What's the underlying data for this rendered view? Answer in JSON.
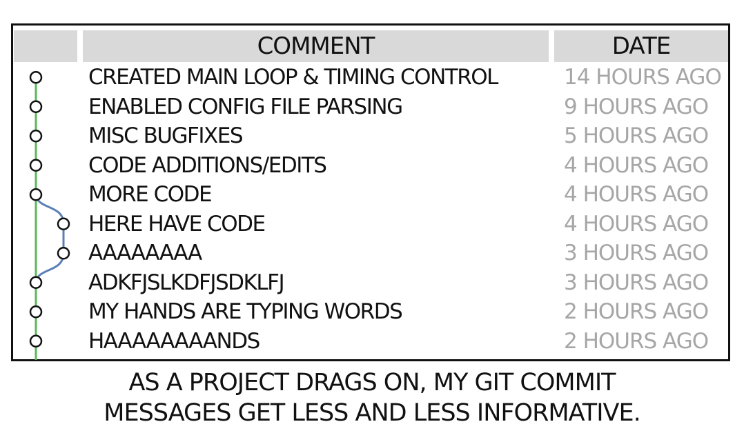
{
  "table": {
    "header": {
      "comment": "COMMENT",
      "date": "DATE"
    },
    "rows": [
      {
        "comment": "CREATED MAIN LOOP & TIMING CONTROL",
        "date": "14 HOURS AGO",
        "branch": "main"
      },
      {
        "comment": "ENABLED CONFIG FILE PARSING",
        "date": "9 HOURS AGO",
        "branch": "main"
      },
      {
        "comment": "MISC BUGFIXES",
        "date": "5 HOURS AGO",
        "branch": "main"
      },
      {
        "comment": "CODE ADDITIONS/EDITS",
        "date": "4 HOURS AGO",
        "branch": "main"
      },
      {
        "comment": "MORE CODE",
        "date": "4 HOURS AGO",
        "branch": "main"
      },
      {
        "comment": "HERE HAVE CODE",
        "date": "4 HOURS AGO",
        "branch": "side"
      },
      {
        "comment": "AAAAAAAA",
        "date": "3 HOURS AGO",
        "branch": "side"
      },
      {
        "comment": "ADKFJSLKDFJSDKLFJ",
        "date": "3 HOURS AGO",
        "branch": "main"
      },
      {
        "comment": "MY HANDS ARE TYPING WORDS",
        "date": "2 HOURS AGO",
        "branch": "main"
      },
      {
        "comment": "HAAAAAAAANDS",
        "date": "2 HOURS AGO",
        "branch": "main"
      }
    ]
  },
  "caption": {
    "line1": "AS A PROJECT DRAGS ON, MY GIT COMMIT",
    "line2": "MESSAGES GET LESS AND LESS INFORMATIVE."
  },
  "colors": {
    "main_branch": "#5cb85c",
    "side_branch": "#5b7fb5",
    "header_bg": "#d9d9d9",
    "date_text": "#a6a6a6",
    "ink": "#111111"
  }
}
